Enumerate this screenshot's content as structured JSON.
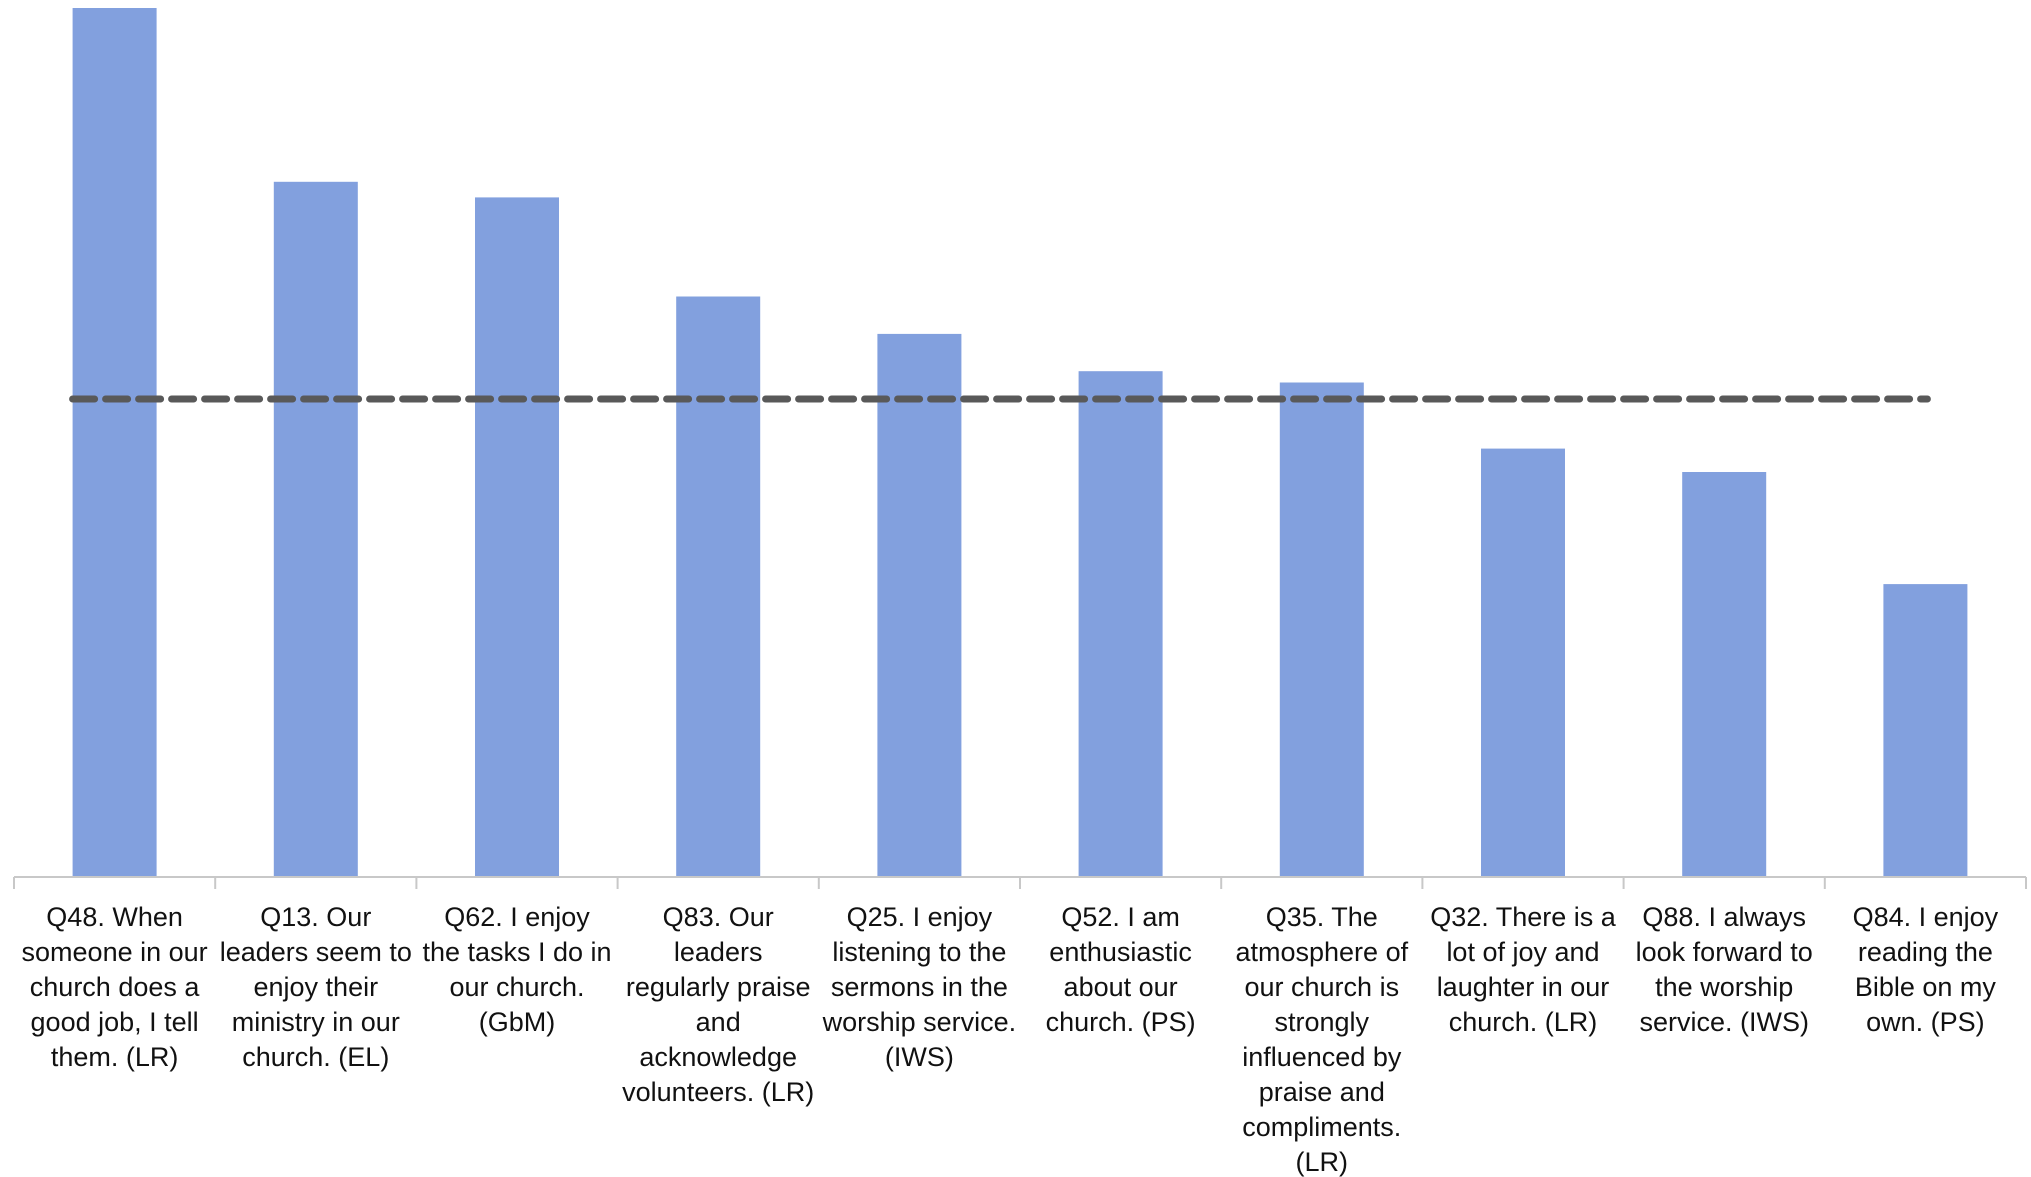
{
  "chart_data": {
    "type": "bar",
    "categories": [
      "Q48. When someone in our church does a good job, I tell them. (LR)",
      "Q13. Our leaders seem to enjoy their ministry in our church. (EL)",
      "Q62. I enjoy the tasks I do in our church. (GbM)",
      "Q83. Our leaders regularly praise and acknowledge volunteers. (LR)",
      "Q25. I enjoy listening to the sermons in the worship service. (IWS)",
      "Q52. I am enthusiastic about our church. (PS)",
      "Q35. The atmosphere of our church is strongly influenced by praise and compliments. (LR)",
      "Q32. There is a lot of joy and laughter in our church. (LR)",
      "Q88. I always look forward to the worship service. (IWS)",
      "Q84. I enjoy reading the Bible on my own. (PS)"
    ],
    "category_lines": [
      [
        "Q48. When",
        "someone in our",
        "church does a",
        "good job, I tell",
        "them. (LR)"
      ],
      [
        "Q13. Our",
        "leaders seem to",
        "enjoy their",
        "ministry in our",
        "church. (EL)"
      ],
      [
        "Q62. I enjoy",
        "the tasks I do in",
        "our church.",
        "(GbM)"
      ],
      [
        "Q83. Our",
        "leaders",
        "regularly praise",
        "and",
        "acknowledge",
        "volunteers. (LR)"
      ],
      [
        "Q25. I enjoy",
        "listening to the",
        "sermons in the",
        "worship service.",
        "(IWS)"
      ],
      [
        "Q52. I am",
        "enthusiastic",
        "about our",
        "church. (PS)"
      ],
      [
        "Q35. The",
        "atmosphere of",
        "our church is",
        "strongly",
        "influenced by",
        "praise and",
        "compliments.",
        "(LR)"
      ],
      [
        "Q32. There is a",
        "lot of joy and",
        "laughter in our",
        "church. (LR)"
      ],
      [
        "Q88. I always",
        "look forward to",
        "the worship",
        "service. (IWS)"
      ],
      [
        "Q84. I enjoy",
        "reading the",
        "Bible on my",
        "own. (PS)"
      ]
    ],
    "values": [
      100,
      80,
      78.2,
      66.8,
      62.5,
      58.2,
      56.9,
      49.3,
      46.6,
      33.7
    ],
    "reference_line": {
      "value": 55,
      "style": "dashed"
    },
    "ylim": [
      0,
      100
    ],
    "title": "",
    "xlabel": "",
    "ylabel": "",
    "grid": false,
    "legend": "none",
    "colors": {
      "bar": "#82A0DE",
      "reference_line": "#595959",
      "axis": "#C8C8C8"
    }
  }
}
